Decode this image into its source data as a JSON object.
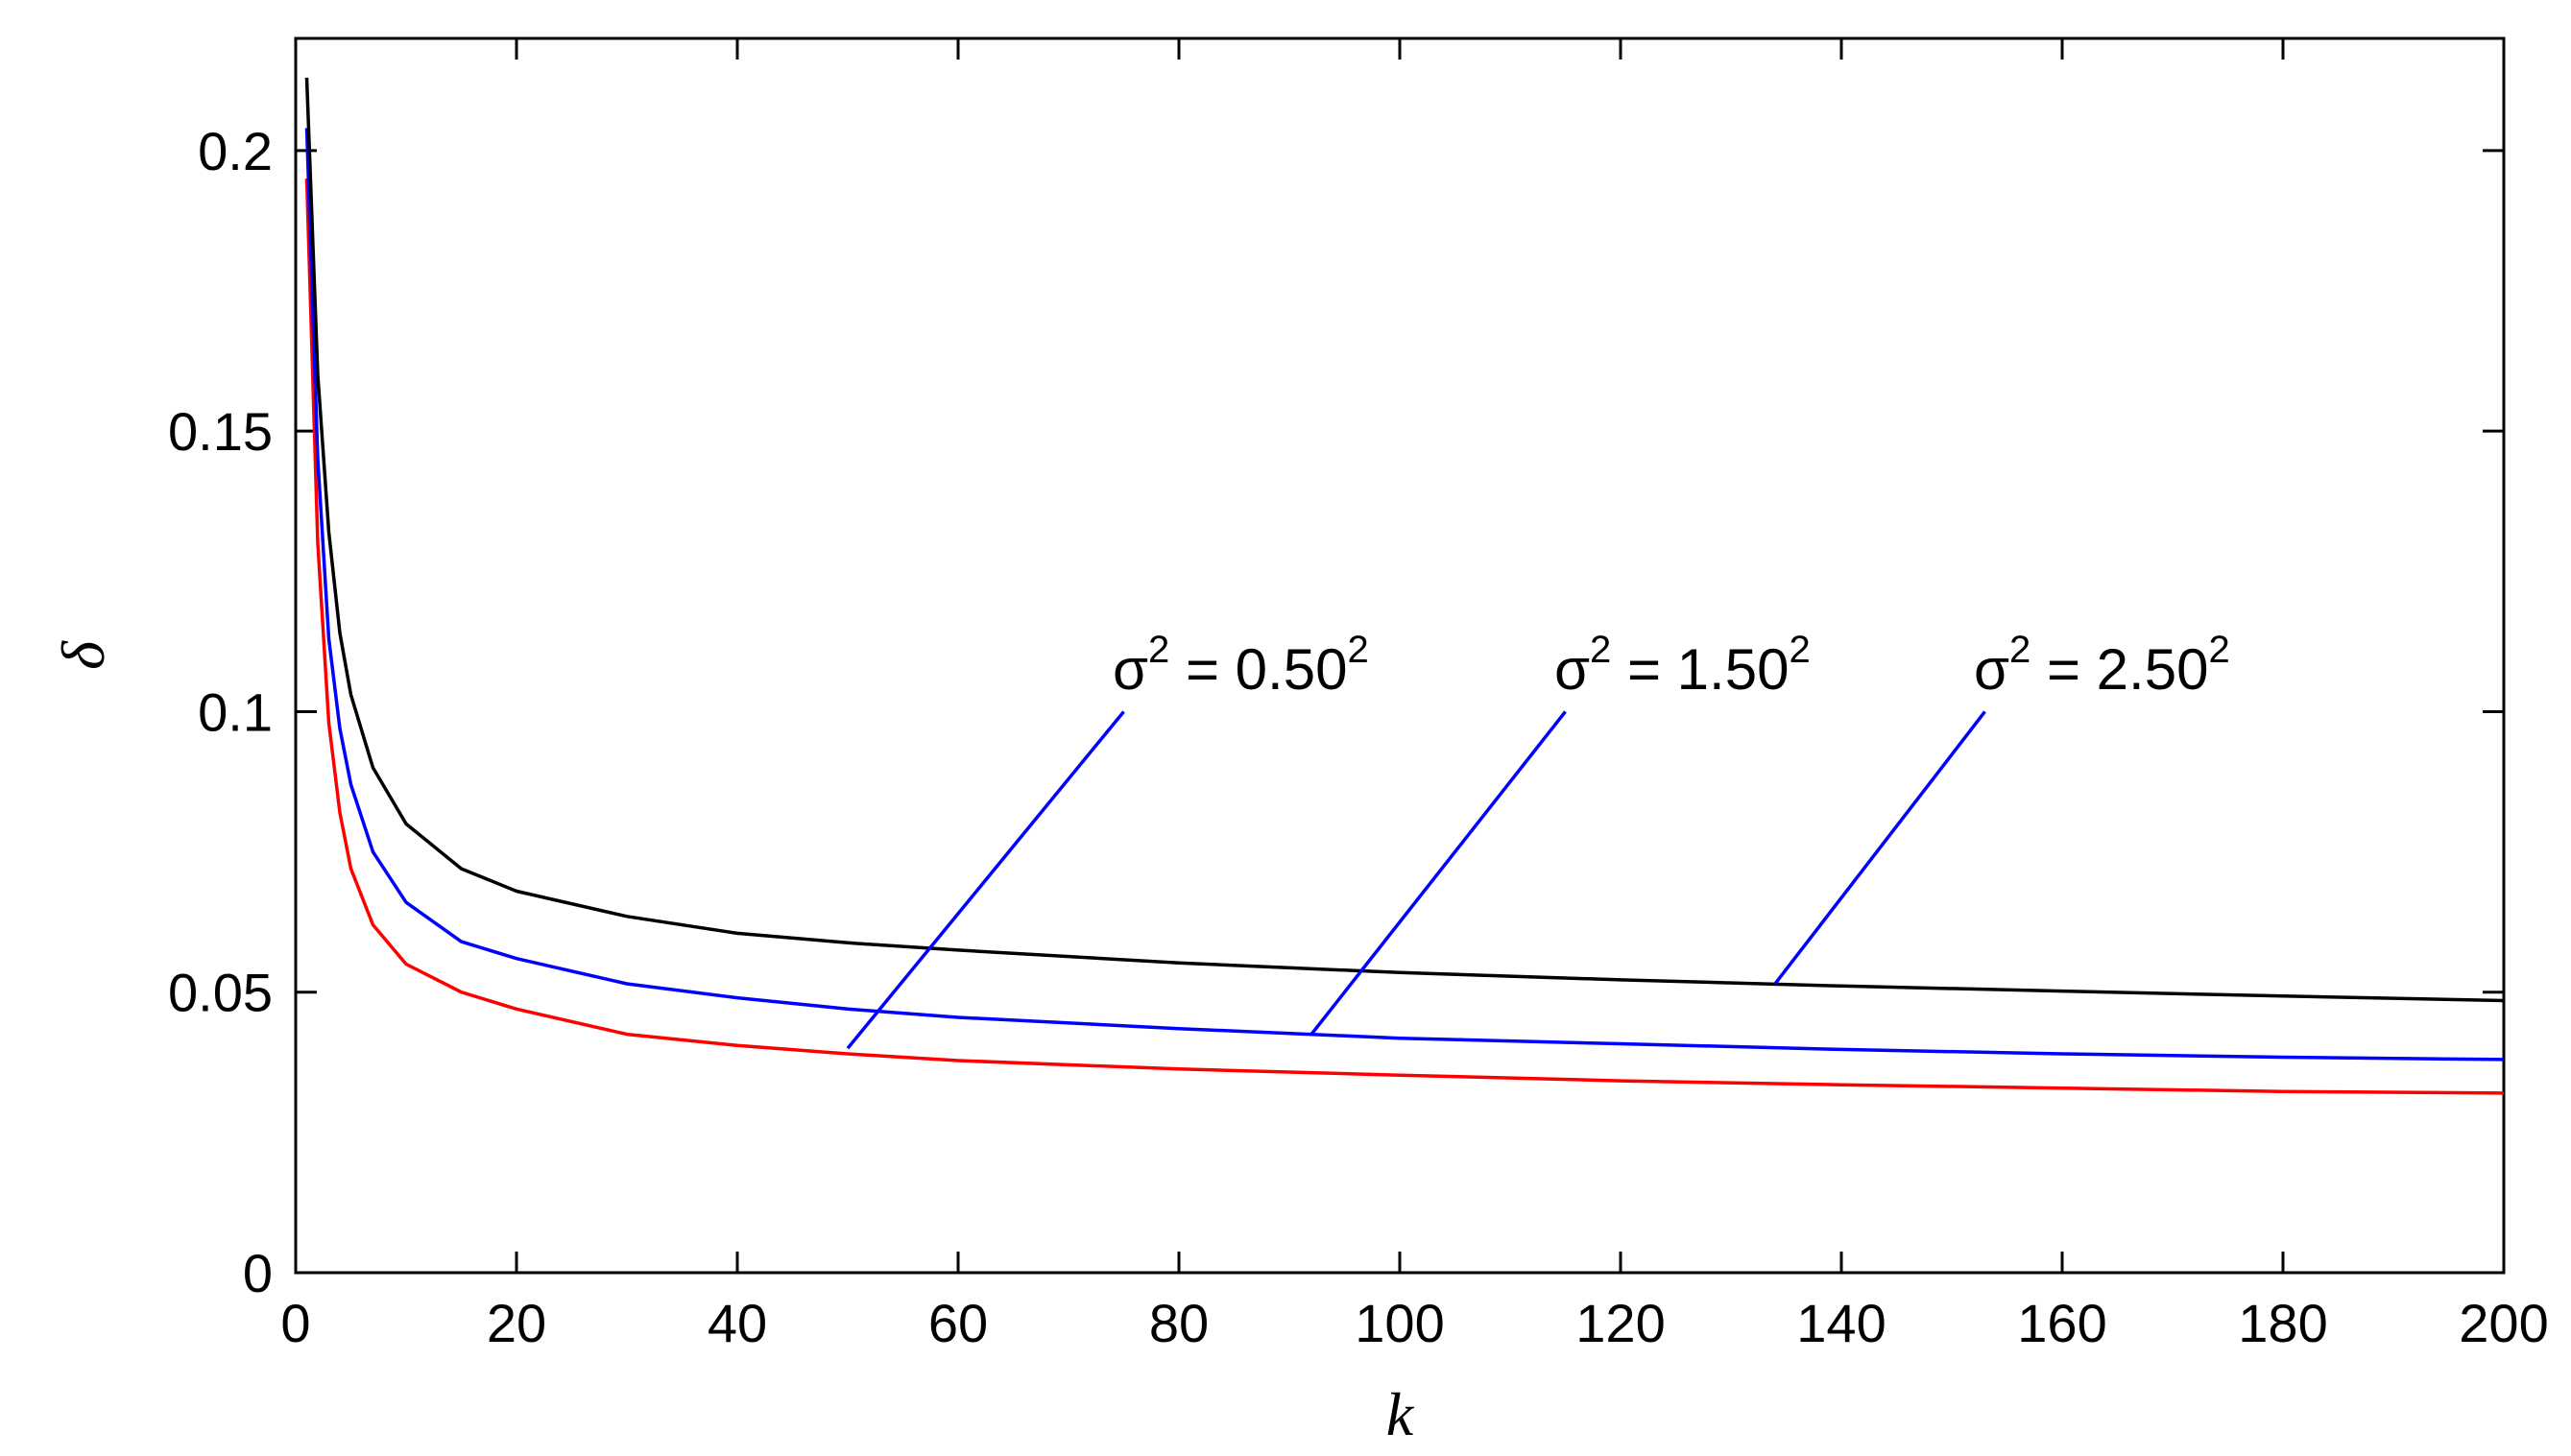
{
  "chart_data": {
    "type": "line",
    "title": "",
    "xlabel": "k",
    "ylabel": "δ",
    "xlim": [
      0,
      200
    ],
    "ylim": [
      0,
      0.22
    ],
    "xticks": [
      0,
      20,
      40,
      60,
      80,
      100,
      120,
      140,
      160,
      180,
      200
    ],
    "xtick_labels": [
      "0",
      "20",
      "40",
      "60",
      "80",
      "100",
      "120",
      "140",
      "160",
      "180",
      "200"
    ],
    "yticks": [
      0,
      0.05,
      0.1,
      0.15,
      0.2
    ],
    "ytick_labels": [
      "0",
      "0.05",
      "0.1",
      "0.15",
      "0.2"
    ],
    "grid": false,
    "colors": {
      "red": "#ff0000",
      "blue": "#0000ff",
      "black": "#000000",
      "annotation": "#0000ff"
    },
    "series": [
      {
        "color": "#ff0000",
        "x": [
          1,
          2,
          3,
          4,
          5,
          7,
          10,
          15,
          20,
          30,
          40,
          50,
          60,
          80,
          100,
          120,
          140,
          160,
          180,
          200
        ],
        "y": [
          0.195,
          0.13,
          0.098,
          0.082,
          0.072,
          0.062,
          0.055,
          0.05,
          0.047,
          0.0425,
          0.0405,
          0.039,
          0.0378,
          0.0363,
          0.0352,
          0.0342,
          0.0335,
          0.0329,
          0.0323,
          0.032
        ]
      },
      {
        "color": "#0000ff",
        "x": [
          1,
          2,
          3,
          4,
          5,
          7,
          10,
          15,
          20,
          30,
          40,
          50,
          60,
          80,
          100,
          120,
          140,
          160,
          180,
          200
        ],
        "y": [
          0.204,
          0.145,
          0.113,
          0.097,
          0.087,
          0.075,
          0.066,
          0.059,
          0.056,
          0.0515,
          0.049,
          0.047,
          0.0455,
          0.0435,
          0.0418,
          0.0408,
          0.0398,
          0.039,
          0.0384,
          0.038
        ]
      },
      {
        "color": "#000000",
        "x": [
          1,
          2,
          3,
          4,
          5,
          7,
          10,
          15,
          20,
          30,
          40,
          50,
          60,
          80,
          100,
          120,
          140,
          160,
          180,
          200
        ],
        "y": [
          0.213,
          0.16,
          0.132,
          0.114,
          0.103,
          0.09,
          0.08,
          0.072,
          0.068,
          0.0635,
          0.0605,
          0.0588,
          0.0575,
          0.0552,
          0.0535,
          0.0522,
          0.0511,
          0.0502,
          0.0493,
          0.0485
        ]
      }
    ],
    "annotations": [
      {
        "symbol": "σ",
        "exp": "2",
        "eq": " = 0.50",
        "exp2": "2",
        "text_at": [
          74,
          0.104
        ],
        "line_from": [
          75,
          0.1
        ],
        "line_to": [
          50,
          0.04
        ]
      },
      {
        "symbol": "σ",
        "exp": "2",
        "eq": " = 1.50",
        "exp2": "2",
        "text_at": [
          114,
          0.104
        ],
        "line_from": [
          115,
          0.1
        ],
        "line_to": [
          92,
          0.0425
        ]
      },
      {
        "symbol": "σ",
        "exp": "2",
        "eq": " = 2.50",
        "exp2": "2",
        "text_at": [
          152,
          0.104
        ],
        "line_from": [
          153,
          0.1
        ],
        "line_to": [
          134,
          0.0515
        ]
      }
    ]
  }
}
